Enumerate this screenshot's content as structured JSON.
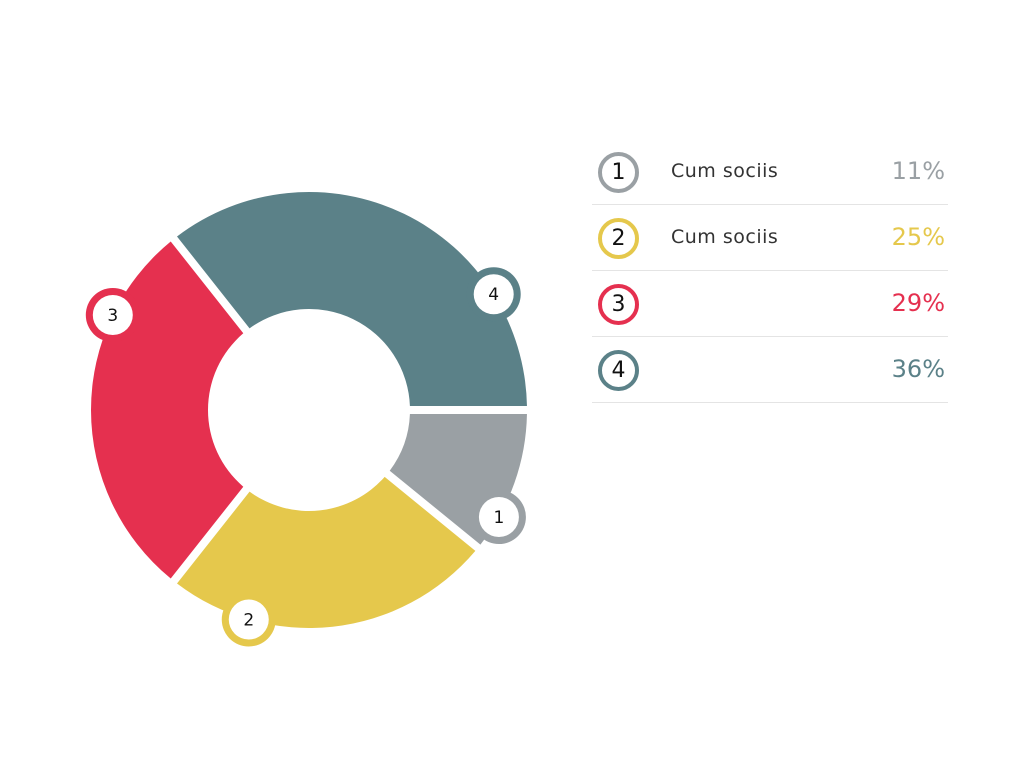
{
  "chart_data": {
    "type": "pie",
    "categories": [
      "1",
      "2",
      "3",
      "4"
    ],
    "values": [
      11,
      25,
      29,
      36
    ],
    "series": [
      {
        "marker": "1",
        "label": "Cum sociis",
        "value": 11,
        "value_label": "11%",
        "color": "#9aa0a4"
      },
      {
        "marker": "2",
        "label": "Cum sociis",
        "value": 25,
        "value_label": "25%",
        "color": "#e5c84c"
      },
      {
        "marker": "3",
        "label": "",
        "value": 29,
        "value_label": "29%",
        "color": "#e5304f"
      },
      {
        "marker": "4",
        "label": "",
        "value": 36,
        "value_label": "36%",
        "color": "#5b8188"
      }
    ],
    "donut": true,
    "legend_position": "right"
  }
}
